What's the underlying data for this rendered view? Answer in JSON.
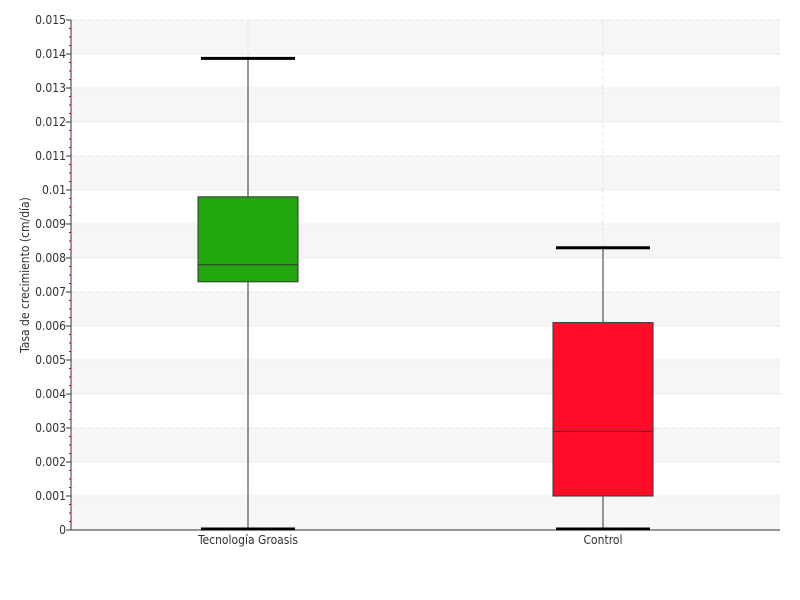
{
  "chart_data": {
    "type": "boxplot",
    "title": "",
    "xlabel": "",
    "ylabel": "Tasa de crecimiento (cm/día)",
    "ylim": [
      0,
      0.015
    ],
    "yticks": [
      "0",
      "0.001",
      "0.002",
      "0.003",
      "0.004",
      "0.005",
      "0.006",
      "0.007",
      "0.008",
      "0.009",
      "0.01",
      "0.011",
      "0.012",
      "0.013",
      "0.014",
      "0.015"
    ],
    "categories": [
      "Tecnología Groasis",
      "Control"
    ],
    "boxes": [
      {
        "category": "Tecnología Groasis",
        "min": 0.0,
        "q1": 0.0073,
        "median": 0.0078,
        "q3": 0.0098,
        "max": 0.01387,
        "color": "#22a70e"
      },
      {
        "category": "Control",
        "min": 0.0,
        "q1": 0.001,
        "median": 0.0029,
        "q3": 0.0061,
        "max": 0.0083,
        "color": "#ff0d28"
      }
    ],
    "grid": true,
    "legend": "none"
  },
  "colors": {
    "band": "#f6f6f6",
    "grid": "#e6e6e6",
    "axis": "#333333",
    "whisker": "#333333",
    "tick_marker": "#d0002a"
  }
}
